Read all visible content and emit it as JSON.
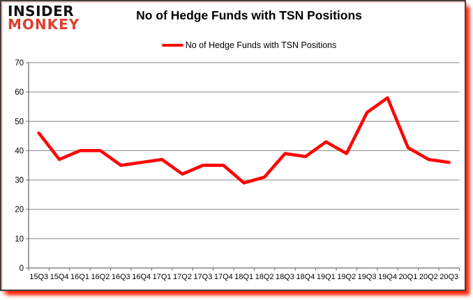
{
  "logo": {
    "line1": "INSIDER",
    "line2": "MONKEY"
  },
  "header": {
    "title": "No of Hedge Funds with TSN Positions"
  },
  "legend": {
    "label": "No of Hedge Funds with TSN Positions"
  },
  "colors": {
    "line": "#ff0000",
    "logo_black": "#111111",
    "logo_red": "#df402f",
    "gridline": "#868686",
    "axis": "#6e6e6e",
    "tick_text": "#000000",
    "shadow": "#ff1e00",
    "background": "#ffffff"
  },
  "chart_data": {
    "type": "line",
    "title": "No of Hedge Funds with TSN Positions",
    "categories": [
      "15Q3",
      "15Q4",
      "16Q1",
      "16Q2",
      "16Q3",
      "16Q4",
      "17Q1",
      "17Q2",
      "17Q3",
      "17Q4",
      "18Q1",
      "18Q2",
      "18Q3",
      "18Q4",
      "19Q1",
      "19Q2",
      "19Q3",
      "19Q4",
      "20Q1",
      "20Q2",
      "20Q3"
    ],
    "series": [
      {
        "name": "No of Hedge Funds with TSN Positions",
        "color": "#ff0000",
        "values": [
          46,
          37,
          40,
          40,
          35,
          36,
          37,
          32,
          35,
          35,
          29,
          31,
          39,
          38,
          43,
          39,
          53,
          58,
          41,
          37,
          36
        ]
      }
    ],
    "xlabel": "",
    "ylabel": "",
    "ylim": [
      0,
      70
    ],
    "ytick_interval": 10,
    "grid": true,
    "legend_position": "top"
  }
}
